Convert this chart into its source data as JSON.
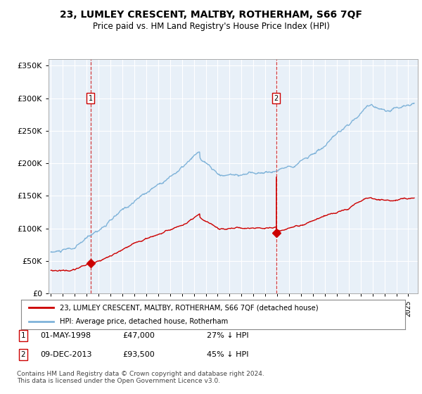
{
  "title": "23, LUMLEY CRESCENT, MALTBY, ROTHERHAM, S66 7QF",
  "subtitle": "Price paid vs. HM Land Registry's House Price Index (HPI)",
  "legend_line1": "23, LUMLEY CRESCENT, MALTBY, ROTHERHAM, S66 7QF (detached house)",
  "legend_line2": "HPI: Average price, detached house, Rotherham",
  "annotation1_date": "01-MAY-1998",
  "annotation1_price": "£47,000",
  "annotation1_hpi": "27% ↓ HPI",
  "annotation1_year": 1998.33,
  "annotation1_value": 47000,
  "annotation2_date": "09-DEC-2013",
  "annotation2_price": "£93,500",
  "annotation2_hpi": "45% ↓ HPI",
  "annotation2_year": 2013.92,
  "annotation2_value": 93500,
  "hpi_color": "#7fb3d9",
  "sale_color": "#cc0000",
  "background_color": "#ffffff",
  "plot_bg": "#e8f0f8",
  "grid_color": "#ffffff",
  "ylim": [
    0,
    360000
  ],
  "xlim_start": 1994.8,
  "xlim_end": 2025.8,
  "footer": "Contains HM Land Registry data © Crown copyright and database right 2024.\nThis data is licensed under the Open Government Licence v3.0.",
  "yticks": [
    0,
    50000,
    100000,
    150000,
    200000,
    250000,
    300000,
    350000
  ],
  "ytick_labels": [
    "£0",
    "£50K",
    "£100K",
    "£150K",
    "£200K",
    "£250K",
    "£300K",
    "£350K"
  ]
}
